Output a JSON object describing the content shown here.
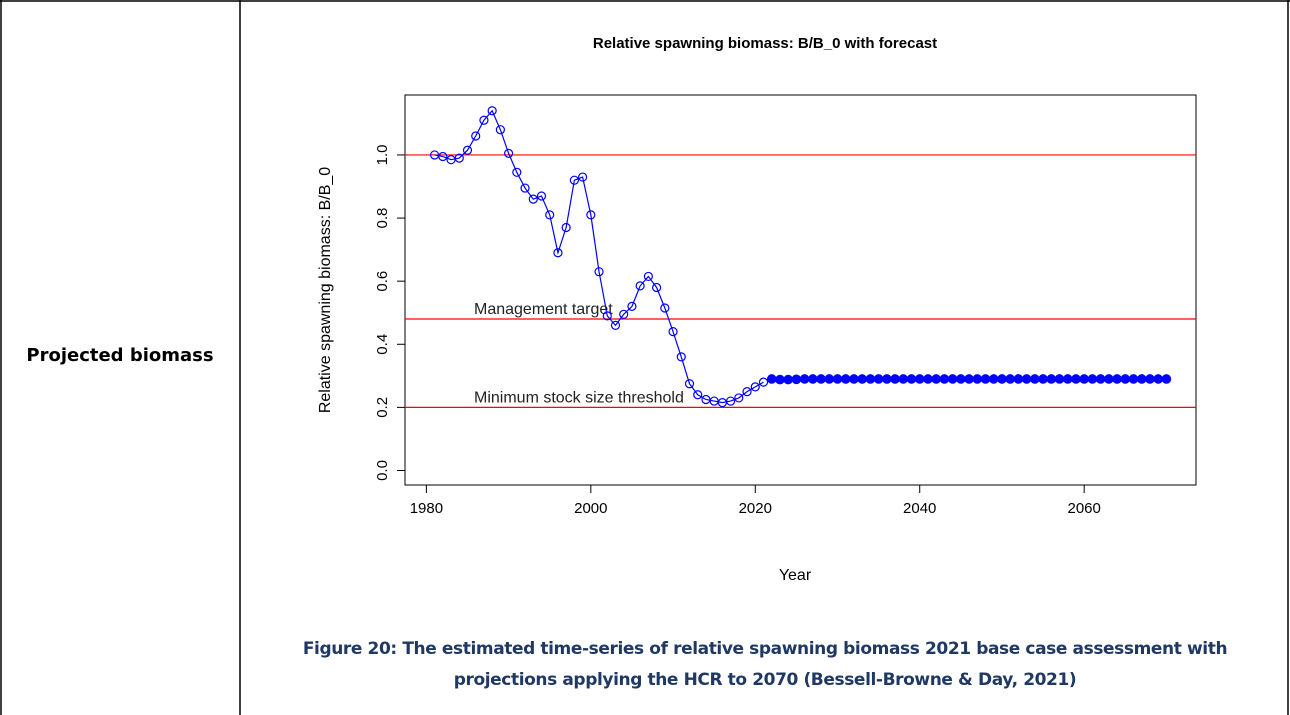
{
  "row_label": "Projected biomass",
  "caption": "Figure 20: The estimated time-series of relative spawning biomass 2021 base case assessment with projections applying the HCR to 2070 (Bessell-Browne & Day, 2021)",
  "chart_data": {
    "type": "line",
    "title": "Relative spawning biomass: B/B_0 with forecast",
    "x_label": "Year",
    "y_label": "Relative spawning biomass: B/B_0",
    "xlim": [
      1977.4,
      2073.6
    ],
    "ylim": [
      -0.046,
      1.19
    ],
    "xticks": [
      1980,
      2000,
      2020,
      2040,
      2060
    ],
    "yticks": [
      {
        "value": 0,
        "label": "0.0"
      },
      0.2,
      0.4,
      0.6,
      0.8,
      {
        "value": 1,
        "label": "1.0"
      }
    ],
    "reference_lines": [
      {
        "value": 1.0,
        "color": "#ff0000"
      },
      {
        "value": 0.48,
        "color": "#ff0000",
        "label": "Management target"
      },
      {
        "value": 0.2,
        "color": "#ff0000",
        "label": "Minimum stock size threshold"
      }
    ],
    "series": [
      {
        "color": "#0000ff",
        "marker": "open",
        "x": [
          1981,
          1982,
          1983,
          1984,
          1985,
          1986,
          1987,
          1988,
          1989,
          1990,
          1991,
          1992,
          1993,
          1994,
          1995,
          1996,
          1997,
          1998,
          1999,
          2000,
          2001,
          2002,
          2003,
          2004,
          2005,
          2006,
          2007,
          2008,
          2009,
          2010,
          2011,
          2012,
          2013,
          2014,
          2015,
          2016,
          2017,
          2018,
          2019,
          2020,
          2021
        ],
        "values": [
          1.0,
          0.995,
          0.985,
          0.99,
          1.015,
          1.06,
          1.11,
          1.14,
          1.08,
          1.005,
          0.945,
          0.895,
          0.86,
          0.87,
          0.81,
          0.69,
          0.77,
          0.92,
          0.93,
          0.81,
          0.63,
          0.49,
          0.46,
          0.495,
          0.52,
          0.585,
          0.615,
          0.58,
          0.515,
          0.44,
          0.36,
          0.275,
          0.24,
          0.225,
          0.22,
          0.215,
          0.22,
          0.23,
          0.25,
          0.265,
          0.28
        ]
      },
      {
        "color": "#0000ff",
        "marker": "filled",
        "x": [
          2022,
          2023,
          2024,
          2025,
          2026,
          2027,
          2028,
          2029,
          2030,
          2031,
          2032,
          2033,
          2034,
          2035,
          2036,
          2037,
          2038,
          2039,
          2040,
          2041,
          2042,
          2043,
          2044,
          2045,
          2046,
          2047,
          2048,
          2049,
          2050,
          2051,
          2052,
          2053,
          2054,
          2055,
          2056,
          2057,
          2058,
          2059,
          2060,
          2061,
          2062,
          2063,
          2064,
          2065,
          2066,
          2067,
          2068,
          2069,
          2070
        ],
        "values": [
          0.29,
          0.288,
          0.288,
          0.289,
          0.29,
          0.29,
          0.29,
          0.29,
          0.29,
          0.29,
          0.29,
          0.29,
          0.29,
          0.29,
          0.29,
          0.29,
          0.29,
          0.29,
          0.29,
          0.29,
          0.29,
          0.29,
          0.29,
          0.29,
          0.29,
          0.29,
          0.29,
          0.29,
          0.29,
          0.29,
          0.29,
          0.29,
          0.29,
          0.29,
          0.29,
          0.29,
          0.29,
          0.29,
          0.29,
          0.29,
          0.29,
          0.29,
          0.29,
          0.29,
          0.29,
          0.29,
          0.29,
          0.29,
          0.29
        ]
      }
    ]
  }
}
